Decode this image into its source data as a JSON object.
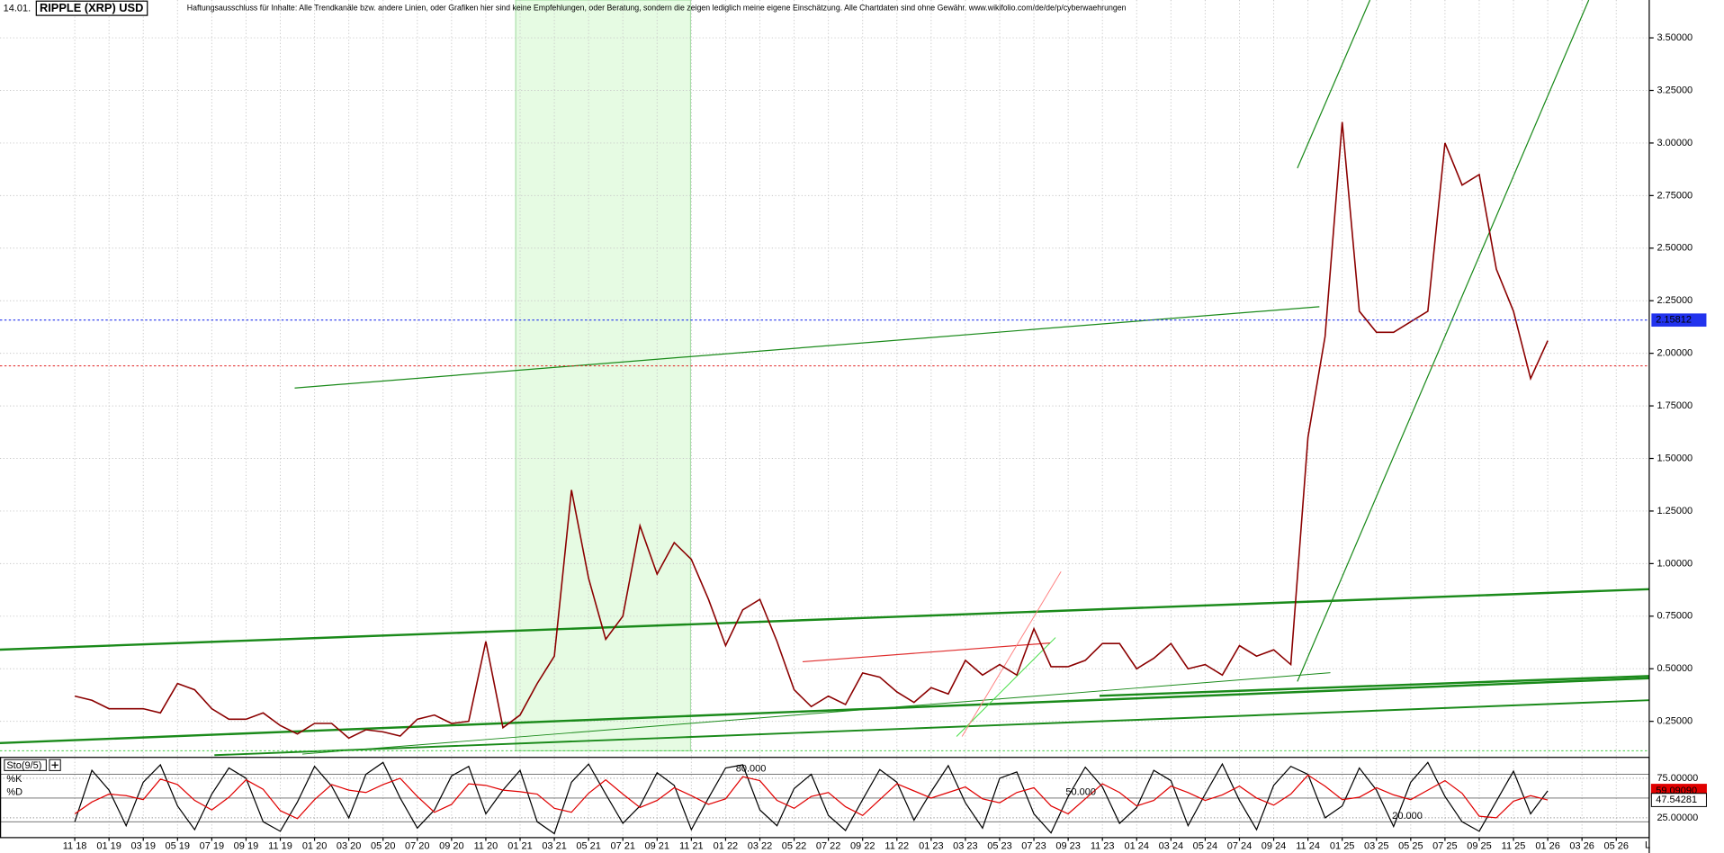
{
  "chart_data": [
    {
      "type": "line",
      "date": "14.01.",
      "title": "RIPPLE (XRP) USD",
      "subtitle": "Haftungsausschluss für Inhalte: Alle Trendkanäle bzw. andere Linien, oder Grafiken hier sind keine Empfehlungen, oder Beratung, sondern die zeigen lediglich meine eigene Einschätzung. Alle Chartdaten sind ohne Gewähr. www.wikifolio.com/de/de/p/cyberwaehrungen",
      "categories": [
        "11 18",
        null,
        "01 19",
        null,
        "03 19",
        null,
        "05 19",
        null,
        "07 19",
        null,
        "09 19",
        null,
        "11 19",
        null,
        "01 20",
        null,
        "03 20",
        null,
        "05 20",
        null,
        "07 20",
        null,
        "09 20",
        null,
        "11 20",
        null,
        "01 21",
        null,
        "03 21",
        null,
        "05 21",
        null,
        "07 21",
        null,
        "09 21",
        null,
        "11 21",
        null,
        "01 22",
        null,
        "03 22",
        null,
        "05 22",
        null,
        "07 22",
        null,
        "09 22",
        null,
        "11 22",
        null,
        "01 23",
        null,
        "03 23",
        null,
        "05 23",
        null,
        "07 23",
        null,
        "09 23",
        null,
        "11 23",
        null,
        "01 24",
        null,
        "03 24",
        null,
        "05 24",
        null,
        "07 24",
        null,
        "09 24",
        null,
        "11 24",
        null,
        "01 25",
        null,
        "03 25",
        null,
        "05 25",
        null,
        "07 25",
        null,
        "09 25",
        null,
        "11 25",
        null,
        "01 26",
        null,
        "03 26",
        null,
        "05 26"
      ],
      "series": [
        {
          "color": "#8b0000",
          "values": [
            0.37,
            0.35,
            0.31,
            0.31,
            0.31,
            0.29,
            0.43,
            0.4,
            0.31,
            0.26,
            0.26,
            0.29,
            0.23,
            0.19,
            0.24,
            0.24,
            0.17,
            0.21,
            0.2,
            0.18,
            0.26,
            0.28,
            0.24,
            0.25,
            0.63,
            0.22,
            0.28,
            0.43,
            0.56,
            1.35,
            0.93,
            0.64,
            0.75,
            1.18,
            0.95,
            1.1,
            1.02,
            0.83,
            0.61,
            0.78,
            0.83,
            0.63,
            0.4,
            0.32,
            0.37,
            0.33,
            0.48,
            0.46,
            0.39,
            0.34,
            0.41,
            0.38,
            0.54,
            0.47,
            0.52,
            0.47,
            0.69,
            0.51,
            0.51,
            0.54,
            0.62,
            0.62,
            0.5,
            0.55,
            0.62,
            0.5,
            0.52,
            0.47,
            0.61,
            0.56,
            0.59,
            0.52,
            1.6,
            2.08,
            3.1,
            2.2,
            2.1,
            2.1,
            2.15,
            2.2,
            3.0,
            2.8,
            2.85,
            2.4,
            2.2,
            1.88,
            2.06,
            null,
            null,
            null,
            null
          ]
        }
      ],
      "ylim": [
        0.11,
        3.68
      ],
      "yticks": [
        {
          "value": 0.25,
          "label": "0.25000"
        },
        {
          "value": 0.5,
          "label": "0.50000"
        },
        {
          "value": 0.75,
          "label": "0.75000"
        },
        {
          "value": 1,
          "label": "1.00000"
        },
        {
          "value": 1.25,
          "label": "1.25000"
        },
        {
          "value": 1.5,
          "label": "1.50000"
        },
        {
          "value": 1.75,
          "label": "1.75000"
        },
        {
          "value": 2,
          "label": "2.00000"
        },
        {
          "value": 2.25,
          "label": "2.25000"
        },
        {
          "value": 2.5,
          "label": "2.50000"
        },
        {
          "value": 2.75,
          "label": "2.75000"
        },
        {
          "value": 3,
          "label": "3.00000"
        },
        {
          "value": 3.25,
          "label": "3.25000"
        },
        {
          "value": 3.5,
          "label": "3.50000"
        }
      ],
      "grid": true,
      "last_price": 2.15812,
      "last_price_color": "#2233ee",
      "reference_line": 1.94,
      "reference_color": "#e02020",
      "scale_mode": "L"
    },
    {
      "type": "line",
      "title": "Sto(9/5)",
      "series": [
        {
          "name": "%K",
          "color": "#000000",
          "values": [
            20,
            85,
            60,
            15,
            70,
            92,
            40,
            10,
            55,
            88,
            75,
            20,
            8,
            45,
            90,
            65,
            25,
            80,
            95,
            50,
            12,
            35,
            78,
            90,
            30,
            60,
            85,
            20,
            5,
            70,
            93,
            55,
            18,
            40,
            82,
            66,
            10,
            50,
            88,
            92,
            35,
            15,
            62,
            80,
            28,
            9,
            48,
            86,
            70,
            22,
            58,
            91,
            44,
            12,
            75,
            83,
            30,
            6,
            52,
            89,
            64,
            18,
            38,
            85,
            72,
            15,
            55,
            93,
            47,
            10,
            66,
            90,
            80,
            25,
            40,
            88,
            60,
            14,
            70,
            95,
            52,
            20,
            8,
            46,
            84,
            30,
            59.0909,
            null,
            null,
            null,
            null
          ]
        },
        {
          "name": "%D",
          "color": "#e00000",
          "values": [
            30,
            45,
            55,
            53,
            48,
            74,
            67,
            47,
            35,
            51,
            73,
            61,
            34,
            24,
            48,
            67,
            60,
            57,
            67,
            75,
            52,
            32,
            42,
            68,
            66,
            60,
            58,
            55,
            37,
            32,
            56,
            73,
            55,
            38,
            47,
            63,
            53,
            42,
            49,
            77,
            72,
            47,
            37,
            52,
            57,
            39,
            28,
            48,
            68,
            59,
            50,
            57,
            64,
            49,
            44,
            57,
            63,
            40,
            30,
            49,
            68,
            57,
            40,
            47,
            65,
            57,
            47,
            54,
            65,
            50,
            41,
            55,
            79,
            65,
            48,
            51,
            63,
            54,
            48,
            60,
            72,
            56,
            27,
            25,
            46,
            53,
            47.54281,
            null,
            null,
            null,
            null
          ]
        }
      ],
      "ylim": [
        0,
        100
      ],
      "yticks": [
        {
          "value": 75,
          "label": "75.00000"
        },
        {
          "value": 25,
          "label": "25.00000"
        }
      ],
      "levels": [
        {
          "value": 80,
          "label": "80.000"
        },
        {
          "value": 50,
          "label": "50.000"
        },
        {
          "value": 20,
          "label": "20.000"
        }
      ],
      "readouts": [
        {
          "value": 59.0909,
          "label": "59.09090"
        },
        {
          "value": 47.54281,
          "label": "47.54281"
        }
      ]
    }
  ]
}
